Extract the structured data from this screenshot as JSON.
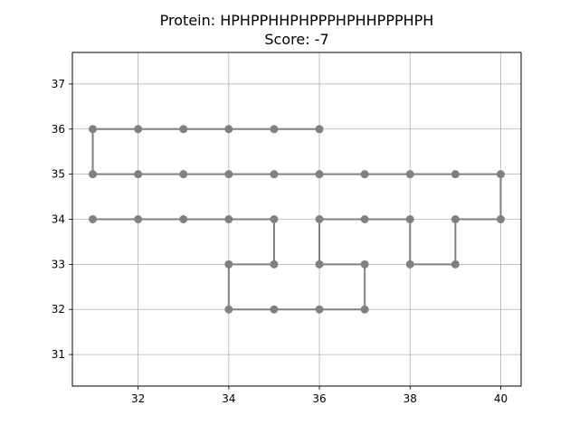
{
  "chart_data": {
    "type": "line",
    "title": "Protein: HPHPPHHPHPPPHPHHPPPHPH",
    "subtitle": "Score: -7",
    "xlabel": "",
    "ylabel": "",
    "xlim": [
      30.55,
      40.45
    ],
    "ylim": [
      30.3,
      37.7
    ],
    "xticks": [
      32,
      34,
      36,
      38,
      40
    ],
    "yticks": [
      31,
      32,
      33,
      34,
      35,
      36,
      37
    ],
    "grid": true,
    "colors": {
      "series": "#808080",
      "grid": "#b0b0b0",
      "axes": "#000000"
    },
    "series": [
      {
        "x": [
          36,
          35,
          34,
          33,
          32,
          31,
          31,
          32,
          33,
          34,
          35,
          36,
          37,
          38,
          39,
          40,
          40,
          39,
          39,
          38,
          38,
          37,
          36,
          36,
          37,
          37,
          36,
          35,
          34,
          34,
          35,
          35,
          34,
          33,
          32,
          31
        ],
        "y": [
          36,
          36,
          36,
          36,
          36,
          36,
          35,
          35,
          35,
          35,
          35,
          35,
          35,
          35,
          35,
          35,
          34,
          34,
          33,
          33,
          34,
          34,
          34,
          33,
          33,
          32,
          32,
          32,
          32,
          33,
          33,
          34,
          34,
          34,
          34,
          34
        ]
      }
    ]
  }
}
